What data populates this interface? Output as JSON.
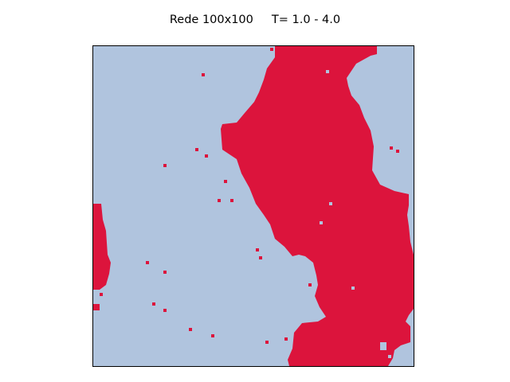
{
  "figure": {
    "title": "Rede 100x100     T= 1.0 - 4.0"
  },
  "lattice": {
    "size_label": "100x100",
    "temperature_range": "1.0 - 4.0",
    "colors": {
      "spin_down": "#b0c4de",
      "spin_up": "#dc143c",
      "frame": "#000000"
    },
    "grid_on": false,
    "axes_visible": false
  }
}
